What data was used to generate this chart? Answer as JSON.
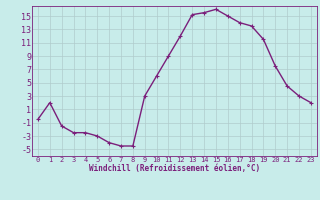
{
  "x": [
    0,
    1,
    2,
    3,
    4,
    5,
    6,
    7,
    8,
    9,
    10,
    11,
    12,
    13,
    14,
    15,
    16,
    17,
    18,
    19,
    20,
    21,
    22,
    23
  ],
  "y": [
    -0.5,
    2,
    -1.5,
    -2.5,
    -2.5,
    -3,
    -4,
    -4.5,
    -4.5,
    3,
    6,
    9,
    12,
    15.2,
    15.5,
    16,
    15,
    14,
    13.5,
    11.5,
    7.5,
    4.5,
    3,
    2
  ],
  "line_color": "#7B1F7B",
  "marker": "+",
  "bg_color": "#c8ecea",
  "grid_color": "#b0cccc",
  "xlabel": "Windchill (Refroidissement éolien,°C)",
  "xlabel_color": "#7B1F7B",
  "ylim": [
    -6,
    16.5
  ],
  "xlim": [
    -0.5,
    23.5
  ],
  "yticks": [
    -5,
    -3,
    -1,
    1,
    3,
    5,
    7,
    9,
    11,
    13,
    15
  ],
  "xticks": [
    0,
    1,
    2,
    3,
    4,
    5,
    6,
    7,
    8,
    9,
    10,
    11,
    12,
    13,
    14,
    15,
    16,
    17,
    18,
    19,
    20,
    21,
    22,
    23
  ],
  "tick_color": "#7B1F7B",
  "spine_color": "#7B1F7B",
  "marker_size": 3,
  "marker_ew": 0.8,
  "line_width": 1.0
}
